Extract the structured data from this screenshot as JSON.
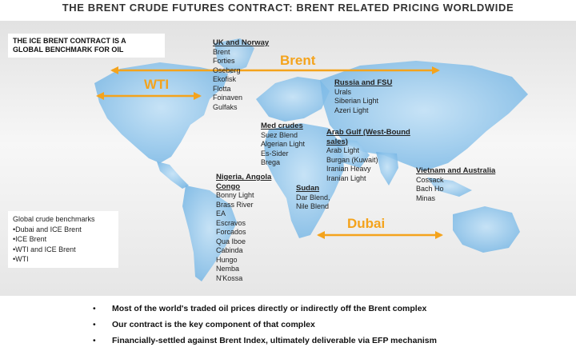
{
  "title": "THE BRENT CRUDE FUTURES CONTRACT: BRENT RELATED PRICING WORLDWIDE",
  "callout": [
    "THE ICE BRENT CONTRACT IS A",
    "GLOBAL BENCHMARK FOR OIL"
  ],
  "benchmarks": {
    "brent": "Brent",
    "wti": "WTI",
    "dubai": "Dubai"
  },
  "regions": {
    "uk_norway": {
      "title": "UK and Norway",
      "items": [
        "Brent",
        "Forties",
        "Oseberg",
        "Ekofisk",
        "Flotta",
        "Foinaven",
        "Gulfaks"
      ]
    },
    "russia_fsu": {
      "title": "Russia and FSU",
      "items": [
        "Urals",
        "Siberian Light",
        "Azeri Light"
      ]
    },
    "med": {
      "title": "Med crudes",
      "items": [
        "Suez Blend",
        "Algerian Light",
        "Es-Sider",
        "Brega"
      ]
    },
    "arab_gulf": {
      "title": "Arab Gulf (West-Bound sales)",
      "items": [
        "Arab Light",
        "Burgan (Kuwait)",
        "Iranian Heavy",
        "Iranian Light"
      ]
    },
    "vietnam_australia": {
      "title": "Vietnam and Australia",
      "items": [
        "Cossack",
        "Bach Ho",
        "Minas"
      ]
    },
    "nigeria": {
      "title": "Nigeria, Angola Congo",
      "items": [
        "Bonny Light",
        "Brass River",
        "EA",
        "Escravos",
        "Forcados",
        "Qua Iboe",
        "Cabinda",
        "Hungo",
        "Nemba",
        "N'Kossa"
      ]
    },
    "sudan": {
      "title": "Sudan",
      "items": [
        "Dar Blend,",
        "Nile Blend"
      ]
    }
  },
  "legend": {
    "title": "Global crude benchmarks",
    "items": [
      "•Dubai and ICE Brent",
      "•ICE Brent",
      "•WTI and ICE Brent",
      "•WTI"
    ]
  },
  "bullets": [
    "Most of the world's traded oil prices directly or indirectly off the Brent complex",
    "Our contract is the key component of that complex",
    "Financially-settled against Brent Index, ultimately deliverable via EFP mechanism"
  ],
  "bullet_symbol": "•",
  "colors": {
    "ocean_land": "#8fc4ea",
    "land_light": "#b9dcf5",
    "arrow": "#f4a31c",
    "text": "#222222"
  }
}
